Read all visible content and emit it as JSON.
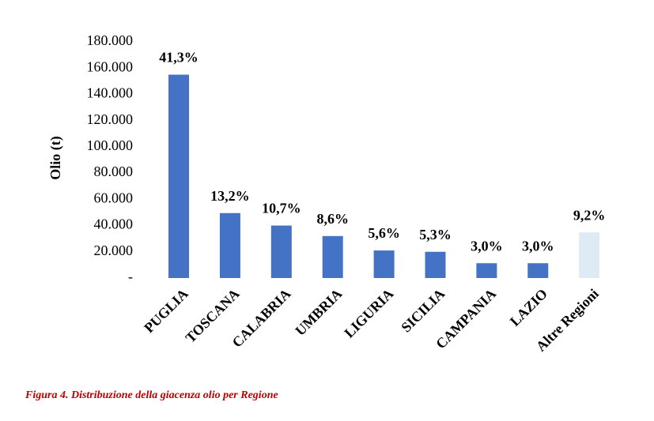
{
  "chart_data": {
    "type": "bar",
    "y_label": "Olio (t)",
    "caption": "Figura 4. Distribuzione della giacenza olio per Regione",
    "categories": [
      "PUGLIA",
      "TOSCANA",
      "CALABRIA",
      "UMBRIA",
      "LIGURIA",
      "SICILIA",
      "CAMPANIA",
      "LAZIO",
      "Altre Regioni"
    ],
    "values": [
      155000,
      49500,
      40000,
      32000,
      21000,
      20000,
      11300,
      11300,
      34800
    ],
    "shares": [
      {
        "value": 41.3,
        "label": "41,3%"
      },
      {
        "value": 13.2,
        "label": "13,2%"
      },
      {
        "value": 10.7,
        "label": "10,7%"
      },
      {
        "value": 8.6,
        "label": "8,6%"
      },
      {
        "value": 5.6,
        "label": "5,6%"
      },
      {
        "value": 5.3,
        "label": "5,3%"
      },
      {
        "value": 3.0,
        "label": "3,0%"
      },
      {
        "value": 3.0,
        "label": "3,0%"
      },
      {
        "value": 9.2,
        "label": "9,2%"
      }
    ],
    "colors": [
      "#4472c4",
      "#4472c4",
      "#4472c4",
      "#4472c4",
      "#4472c4",
      "#4472c4",
      "#4472c4",
      "#4472c4",
      "#ddebf7"
    ],
    "ylim": [
      0,
      180000
    ],
    "yticks": [
      {
        "value": 0,
        "label": "-"
      },
      {
        "value": 20000,
        "label": "20.000"
      },
      {
        "value": 40000,
        "label": "40.000"
      },
      {
        "value": 60000,
        "label": "60.000"
      },
      {
        "value": 80000,
        "label": "80.000"
      },
      {
        "value": 100000,
        "label": "100.000"
      },
      {
        "value": 120000,
        "label": "120.000"
      },
      {
        "value": 140000,
        "label": "140.000"
      },
      {
        "value": 160000,
        "label": "160.000"
      },
      {
        "value": 180000,
        "label": "180.000"
      }
    ],
    "grid": false
  }
}
